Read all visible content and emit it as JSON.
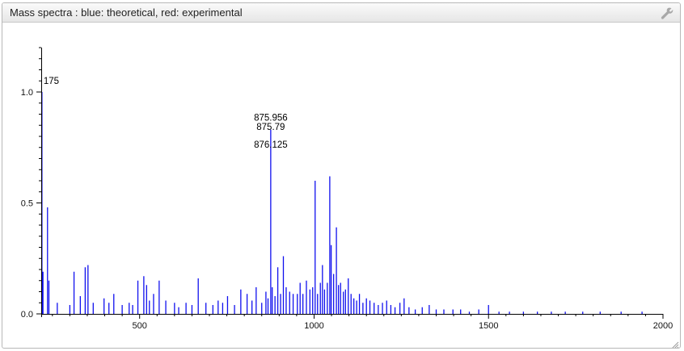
{
  "panel": {
    "title": "Mass spectra : blue: theoretical, red: experimental",
    "settings_icon": "wrench-icon",
    "resize_icon": "resize-grip-icon"
  },
  "colors": {
    "theoretical": "#1010ee",
    "experimental": "#ee1010",
    "axis": "#000000"
  },
  "chart_data": {
    "type": "bar",
    "title": "",
    "xlabel": "",
    "ylabel": "",
    "xlim": [
      218,
      2000
    ],
    "ylim": [
      0,
      1.2
    ],
    "x_ticks": [
      500,
      1000,
      1500,
      2000
    ],
    "x_tick_labels": [
      "500",
      "1000",
      "1500",
      "2000"
    ],
    "y_ticks": [
      0.0,
      0.5,
      1.0
    ],
    "y_tick_labels": [
      "0.0",
      "0.5",
      "1.0"
    ],
    "series": [
      {
        "name": "theoretical",
        "color": "#1010ee",
        "peaks": [
          [
            220,
            1.0
          ],
          [
            223,
            0.19
          ],
          [
            236,
            0.48
          ],
          [
            240,
            0.15
          ],
          [
            264,
            0.05
          ],
          [
            300,
            0.04
          ],
          [
            312,
            0.19
          ],
          [
            330,
            0.08
          ],
          [
            344,
            0.21
          ],
          [
            352,
            0.22
          ],
          [
            367,
            0.05
          ],
          [
            398,
            0.07
          ],
          [
            412,
            0.05
          ],
          [
            426,
            0.09
          ],
          [
            450,
            0.04
          ],
          [
            470,
            0.05
          ],
          [
            480,
            0.04
          ],
          [
            495,
            0.15
          ],
          [
            512,
            0.17
          ],
          [
            520,
            0.13
          ],
          [
            528,
            0.06
          ],
          [
            540,
            0.09
          ],
          [
            556,
            0.15
          ],
          [
            575,
            0.06
          ],
          [
            600,
            0.05
          ],
          [
            612,
            0.03
          ],
          [
            633,
            0.05
          ],
          [
            650,
            0.04
          ],
          [
            668,
            0.16
          ],
          [
            690,
            0.05
          ],
          [
            710,
            0.04
          ],
          [
            725,
            0.06
          ],
          [
            738,
            0.05
          ],
          [
            752,
            0.08
          ],
          [
            772,
            0.04
          ],
          [
            790,
            0.11
          ],
          [
            808,
            0.09
          ],
          [
            822,
            0.06
          ],
          [
            834,
            0.12
          ],
          [
            850,
            0.05
          ],
          [
            862,
            0.1
          ],
          [
            868,
            0.07
          ],
          [
            875.79,
            0.83
          ],
          [
            880,
            0.12
          ],
          [
            888,
            0.08
          ],
          [
            896,
            0.21
          ],
          [
            904,
            0.09
          ],
          [
            912,
            0.26
          ],
          [
            920,
            0.12
          ],
          [
            930,
            0.1
          ],
          [
            940,
            0.09
          ],
          [
            952,
            0.09
          ],
          [
            960,
            0.14
          ],
          [
            968,
            0.09
          ],
          [
            978,
            0.15
          ],
          [
            988,
            0.11
          ],
          [
            996,
            0.12
          ],
          [
            1003,
            0.6
          ],
          [
            1010,
            0.09
          ],
          [
            1018,
            0.14
          ],
          [
            1024,
            0.22
          ],
          [
            1030,
            0.11
          ],
          [
            1038,
            0.14
          ],
          [
            1045,
            0.62
          ],
          [
            1049,
            0.31
          ],
          [
            1056,
            0.18
          ],
          [
            1064,
            0.39
          ],
          [
            1070,
            0.13
          ],
          [
            1076,
            0.14
          ],
          [
            1084,
            0.1
          ],
          [
            1090,
            0.11
          ],
          [
            1098,
            0.16
          ],
          [
            1106,
            0.09
          ],
          [
            1114,
            0.07
          ],
          [
            1122,
            0.06
          ],
          [
            1130,
            0.09
          ],
          [
            1140,
            0.05
          ],
          [
            1150,
            0.07
          ],
          [
            1160,
            0.06
          ],
          [
            1172,
            0.05
          ],
          [
            1184,
            0.04
          ],
          [
            1196,
            0.05
          ],
          [
            1208,
            0.06
          ],
          [
            1220,
            0.04
          ],
          [
            1232,
            0.03
          ],
          [
            1246,
            0.05
          ],
          [
            1258,
            0.07
          ],
          [
            1272,
            0.03
          ],
          [
            1290,
            0.02
          ],
          [
            1310,
            0.03
          ],
          [
            1330,
            0.04
          ],
          [
            1350,
            0.02
          ],
          [
            1372,
            0.02
          ],
          [
            1398,
            0.02
          ],
          [
            1420,
            0.02
          ],
          [
            1445,
            0.01
          ],
          [
            1472,
            0.02
          ],
          [
            1500,
            0.04
          ],
          [
            1530,
            0.01
          ],
          [
            1560,
            0.01
          ],
          [
            1600,
            0.01
          ],
          [
            1640,
            0.01
          ],
          [
            1680,
            0.01
          ],
          [
            1720,
            0.01
          ],
          [
            1770,
            0.01
          ],
          [
            1820,
            0.01
          ],
          [
            1880,
            0.01
          ],
          [
            1940,
            0.01
          ]
        ]
      }
    ],
    "annotations": [
      {
        "text": "175",
        "x": 220,
        "y": 1.0
      },
      {
        "text": "875.956",
        "x": 875.79,
        "y": 0.85
      },
      {
        "text": "875.79",
        "x": 875.79,
        "y": 0.83
      },
      {
        "text": "876.125",
        "x": 875.79,
        "y": 0.75
      }
    ]
  }
}
